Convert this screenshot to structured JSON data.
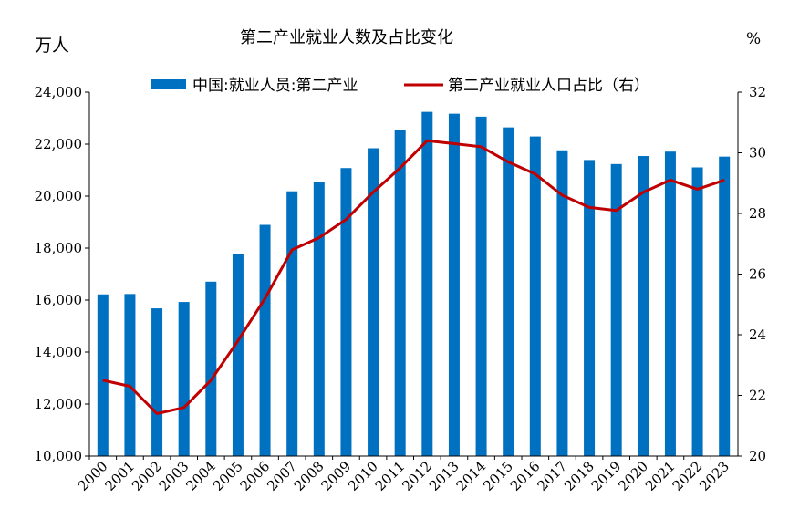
{
  "chart_data": {
    "type": "bar+line",
    "title": "第二产业就业人数及占比变化",
    "left_unit": "万人",
    "right_unit": "%",
    "categories": [
      "2000",
      "2001",
      "2002",
      "2003",
      "2004",
      "2005",
      "2006",
      "2007",
      "2008",
      "2009",
      "2010",
      "2011",
      "2012",
      "2013",
      "2014",
      "2015",
      "2016",
      "2017",
      "2018",
      "2019",
      "2020",
      "2021",
      "2022",
      "2023"
    ],
    "series": [
      {
        "name": "中国:就业人员:第二产业",
        "type": "bar",
        "axis": "left",
        "color": "#0070C0",
        "values": [
          16219,
          16234,
          15682,
          15927,
          16709,
          17766,
          18894,
          20186,
          20553,
          21080,
          21842,
          22544,
          23241,
          23170,
          23057,
          22644,
          22295,
          21762,
          21390,
          21234,
          21543,
          21712,
          21105,
          21520
        ]
      },
      {
        "name": "第二产业就业人口占比（右）",
        "type": "line",
        "axis": "right",
        "color": "#C00000",
        "values": [
          22.5,
          22.3,
          21.4,
          21.6,
          22.5,
          23.8,
          25.2,
          26.8,
          27.2,
          27.8,
          28.7,
          29.5,
          30.4,
          30.3,
          30.2,
          29.7,
          29.3,
          28.6,
          28.2,
          28.1,
          28.7,
          29.1,
          28.8,
          29.1
        ]
      }
    ],
    "left_axis": {
      "min": 10000,
      "max": 24000,
      "step": 2000,
      "tick_labels": [
        "10,000",
        "12,000",
        "14,000",
        "16,000",
        "18,000",
        "20,000",
        "22,000",
        "24,000"
      ]
    },
    "right_axis": {
      "min": 20,
      "max": 32,
      "step": 2,
      "tick_labels": [
        "20",
        "22",
        "24",
        "26",
        "28",
        "30",
        "32"
      ]
    },
    "legend_position": "top-center"
  }
}
